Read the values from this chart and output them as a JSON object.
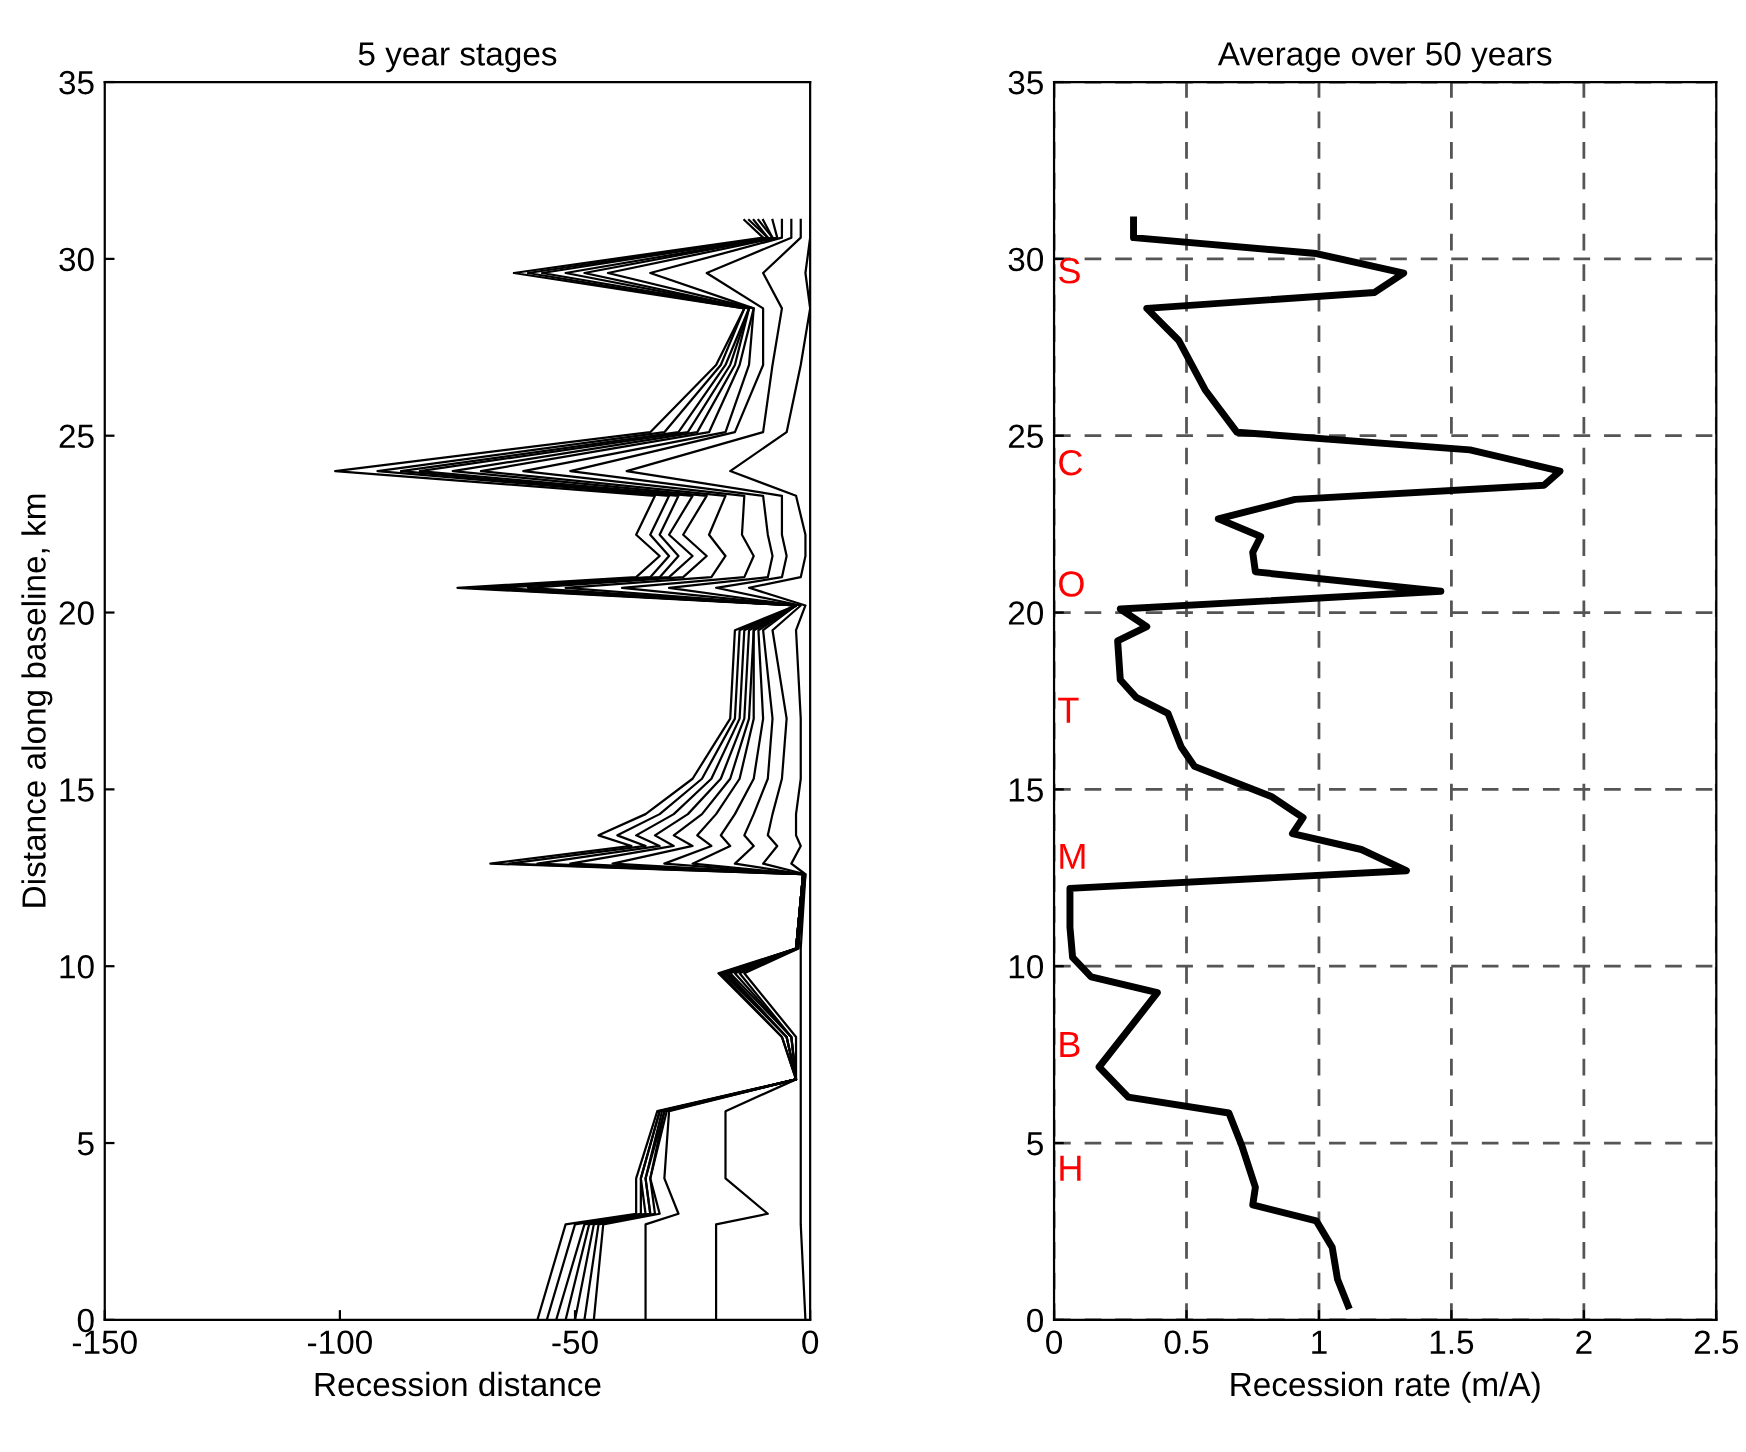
{
  "chart_data": [
    {
      "type": "line",
      "title": "5 year stages",
      "xlabel": "Recession distance",
      "ylabel": "Distance along baseline, km",
      "xlim": [
        -150,
        0
      ],
      "xticks": [
        -150,
        -100,
        -50,
        0
      ],
      "ylim": [
        0,
        35
      ],
      "yticks": [
        0,
        5,
        10,
        15,
        20,
        25,
        30,
        35
      ],
      "grid": false,
      "series": [
        {
          "color": "#000000",
          "x": [
            -14,
            -10,
            -63,
            -14,
            -20,
            -34,
            -101,
            -33,
            -37,
            -32,
            -37,
            -75,
            -3,
            -16,
            -17,
            -25,
            -35,
            -45,
            -38,
            -68,
            -1.5,
            -3,
            -19.5,
            -6,
            -3,
            -32.5,
            -37,
            -37,
            -52,
            -58
          ],
          "values": [
            31.1,
            30.6,
            29.6,
            28.6,
            27.0,
            25.1,
            24.0,
            23.3,
            22.2,
            21.6,
            21.0,
            20.7,
            20.2,
            19.5,
            17.0,
            15.3,
            14.3,
            13.7,
            13.4,
            12.9,
            12.6,
            10.5,
            9.8,
            8.0,
            6.8,
            5.9,
            4.0,
            3.0,
            2.7,
            0
          ]
        },
        {
          "color": "#000000",
          "x": [
            -13,
            -9,
            -60,
            -14,
            -19,
            -31,
            -92,
            -30,
            -34,
            -30,
            -34,
            -72,
            -3,
            -15,
            -16,
            -23,
            -32,
            -41,
            -35,
            -64,
            -1.5,
            -3,
            -19,
            -6,
            -3,
            -32,
            -36,
            -36,
            -50,
            -56
          ],
          "values": [
            31.1,
            30.6,
            29.6,
            28.6,
            27.0,
            25.1,
            24.0,
            23.3,
            22.2,
            21.6,
            21.0,
            20.7,
            20.2,
            19.5,
            17.0,
            15.3,
            14.3,
            13.7,
            13.4,
            12.9,
            12.6,
            10.5,
            9.8,
            8.0,
            6.8,
            5.9,
            4.0,
            3.0,
            2.7,
            0
          ]
        },
        {
          "color": "#000000",
          "x": [
            -12,
            -9,
            -57,
            -13,
            -18,
            -28,
            -87,
            -28,
            -32,
            -28,
            -32,
            -70,
            -3,
            -14,
            -15,
            -21,
            -29,
            -37,
            -32,
            -58,
            -1.5,
            -3,
            -18.5,
            -5,
            -3,
            -32,
            -36,
            -35,
            -48,
            -54
          ],
          "values": [
            31.1,
            30.6,
            29.6,
            28.6,
            27.0,
            25.1,
            24.0,
            23.3,
            22.2,
            21.6,
            21.0,
            20.7,
            20.2,
            19.5,
            17.0,
            15.3,
            14.3,
            13.7,
            13.4,
            12.9,
            12.6,
            10.5,
            9.8,
            8.0,
            6.8,
            5.9,
            4.0,
            3.0,
            2.7,
            0
          ]
        },
        {
          "color": "#000000",
          "x": [
            -11,
            -8,
            -52,
            -13,
            -17,
            -26,
            -83,
            -25,
            -30,
            -25,
            -30,
            -66,
            -3,
            -13,
            -14,
            -19,
            -26,
            -33,
            -29,
            -51,
            -1.5,
            -3,
            -18,
            -5,
            -3,
            -31.5,
            -35,
            -34,
            -47,
            -52
          ],
          "values": [
            31.1,
            30.6,
            29.6,
            28.6,
            27.0,
            25.1,
            24.0,
            23.3,
            22.2,
            21.6,
            21.0,
            20.7,
            20.2,
            19.5,
            17.0,
            15.3,
            14.3,
            13.7,
            13.4,
            12.9,
            12.6,
            10.5,
            9.8,
            8.0,
            6.8,
            5.9,
            4.0,
            3.0,
            2.7,
            0
          ]
        },
        {
          "color": "#000000",
          "x": [
            -10,
            -8,
            -48,
            -13,
            -16,
            -24,
            -76,
            -22,
            -27,
            -22,
            -27,
            -60,
            -3,
            -12,
            -13,
            -17,
            -23,
            -29,
            -25,
            -42,
            -1.5,
            -3,
            -17.5,
            -5,
            -3,
            -31,
            -35,
            -34,
            -46,
            -50
          ],
          "values": [
            31.1,
            30.6,
            29.6,
            28.6,
            27.0,
            25.1,
            24.0,
            23.3,
            22.2,
            21.6,
            21.0,
            20.7,
            20.2,
            19.5,
            17.0,
            15.3,
            14.3,
            13.7,
            13.4,
            12.9,
            12.6,
            10.5,
            9.8,
            8.0,
            6.8,
            5.9,
            4.0,
            3.0,
            2.7,
            0
          ]
        },
        {
          "color": "#000000",
          "x": [
            -8,
            -7,
            -43,
            -12,
            -15,
            -21.5,
            -70,
            -18,
            -21.5,
            -18,
            -21,
            -52,
            -3,
            -12,
            -12,
            -15,
            -20,
            -24,
            -21,
            -31,
            -1.5,
            -3,
            -17,
            -4,
            -3,
            -31,
            -34,
            -33,
            -45,
            -48
          ],
          "values": [
            31.1,
            30.6,
            29.6,
            28.6,
            27.0,
            25.1,
            24.0,
            23.3,
            22.2,
            21.6,
            21.0,
            20.7,
            20.2,
            19.5,
            17.0,
            15.3,
            14.3,
            13.7,
            13.4,
            12.9,
            12.6,
            10.5,
            9.8,
            8.0,
            6.8,
            5.9,
            4.0,
            3.0,
            2.7,
            0
          ]
        },
        {
          "color": "#000000",
          "x": [
            -6,
            -6,
            -34,
            -12,
            -13,
            -18,
            -61,
            -14,
            -14.5,
            -12,
            -14,
            -40,
            -3,
            -11,
            -10,
            -12,
            -16,
            -19,
            -17,
            -25,
            -1.5,
            -3,
            -16,
            -4,
            -3,
            -30.5,
            -34,
            -32,
            -44,
            -46
          ],
          "values": [
            31.1,
            30.6,
            29.6,
            28.6,
            27.0,
            25.1,
            24.0,
            23.3,
            22.2,
            21.6,
            21.0,
            20.7,
            20.2,
            19.5,
            17.0,
            15.3,
            14.3,
            13.7,
            13.4,
            12.9,
            12.6,
            10.5,
            9.8,
            8.0,
            6.8,
            5.9,
            4.0,
            3.0,
            2.7,
            0
          ]
        },
        {
          "color": "#000000",
          "x": [
            -4,
            -4,
            -22,
            -10,
            -10,
            -16,
            -51,
            -10,
            -9,
            -8,
            -9,
            -30,
            -3,
            -10,
            -8,
            -9,
            -12,
            -14,
            -12,
            -16,
            -1.5,
            -2.5,
            -15,
            -4,
            -3,
            -30,
            -31,
            -28,
            -35,
            -35
          ],
          "values": [
            31.1,
            30.6,
            29.6,
            28.6,
            27.0,
            25.1,
            24.0,
            23.3,
            22.2,
            21.6,
            21.0,
            20.7,
            20.2,
            19.5,
            17.0,
            15.3,
            14.3,
            13.7,
            13.4,
            12.9,
            12.6,
            10.5,
            9.8,
            8.0,
            6.8,
            5.9,
            4.0,
            3.0,
            2.7,
            0
          ]
        },
        {
          "color": "#000000",
          "x": [
            -2,
            -2,
            -10,
            -6,
            -8,
            -10,
            -39,
            -6,
            -6,
            -5,
            -6,
            -20,
            -2,
            -8,
            -5,
            -6,
            -8,
            -9,
            -7,
            -10,
            -1,
            -2.5,
            -14,
            -3,
            -3,
            -18,
            -18,
            -9,
            -20,
            -20
          ],
          "values": [
            31.1,
            30.6,
            29.6,
            28.6,
            27.0,
            25.1,
            24.0,
            23.3,
            22.2,
            21.6,
            21.0,
            20.7,
            20.2,
            19.5,
            17.0,
            15.3,
            14.3,
            13.7,
            13.4,
            12.9,
            12.6,
            10.5,
            9.8,
            8.0,
            6.8,
            5.9,
            4.0,
            3.0,
            2.7,
            0
          ]
        },
        {
          "color": "#000000",
          "x": [
            0,
            0,
            -1,
            0,
            -2,
            -5,
            -17,
            -3,
            -1,
            -1,
            -2,
            -13,
            -1,
            -3,
            -2,
            -2,
            -3,
            -3,
            -2,
            -4,
            -1,
            -2,
            -2,
            -2,
            -2,
            -2,
            -2,
            -2,
            -2,
            -1
          ],
          "values": [
            31.1,
            30.6,
            29.6,
            28.6,
            27.0,
            25.1,
            24.0,
            23.3,
            22.2,
            21.6,
            21.0,
            20.7,
            20.2,
            19.5,
            17.0,
            15.3,
            14.3,
            13.7,
            13.4,
            12.9,
            12.6,
            10.5,
            9.8,
            8.0,
            6.8,
            5.9,
            4.0,
            3.0,
            2.7,
            0
          ]
        }
      ]
    },
    {
      "type": "line",
      "title": "Average over 50 years",
      "xlabel": "Recession rate (m/A)",
      "xlim": [
        0,
        2.5
      ],
      "xticks": [
        0,
        0.5,
        1,
        1.5,
        2,
        2.5
      ],
      "ylim": [
        0,
        35
      ],
      "yticks": [
        0,
        5,
        10,
        15,
        20,
        25,
        30,
        35
      ],
      "grid": true,
      "line_style": "solid",
      "series": [
        {
          "color": "#000000",
          "x": [
            0.3,
            0.3,
            0.99,
            1.32,
            1.21,
            0.35,
            0.47,
            0.57,
            0.69,
            1.57,
            1.91,
            1.85,
            0.91,
            0.62,
            0.78,
            0.75,
            0.76,
            1.46,
            0.25,
            0.35,
            0.24,
            0.25,
            0.31,
            0.43,
            0.48,
            0.53,
            0.82,
            0.9,
            0.94,
            0.9,
            1.16,
            1.33,
            0.06,
            0.06,
            0.07,
            0.14,
            0.39,
            0.17,
            0.28,
            0.66,
            0.71,
            0.76,
            0.75,
            0.99,
            1.05,
            1.07,
            1.11
          ],
          "values": [
            31.1,
            30.6,
            30.15,
            29.6,
            29.05,
            28.6,
            27.7,
            26.3,
            25.1,
            24.6,
            24.0,
            23.6,
            23.2,
            22.65,
            22.15,
            21.7,
            21.15,
            20.6,
            20.1,
            19.6,
            19.2,
            18.1,
            17.6,
            17.15,
            16.2,
            15.65,
            14.8,
            14.4,
            14.2,
            13.75,
            13.3,
            12.7,
            12.2,
            11.1,
            10.25,
            9.7,
            9.25,
            7.15,
            6.3,
            5.85,
            4.9,
            3.75,
            3.25,
            2.8,
            2.05,
            1.15,
            0.4
          ]
        }
      ],
      "annotations": [
        "S",
        "C",
        "O",
        "T",
        "M",
        "B",
        "H"
      ]
    }
  ]
}
